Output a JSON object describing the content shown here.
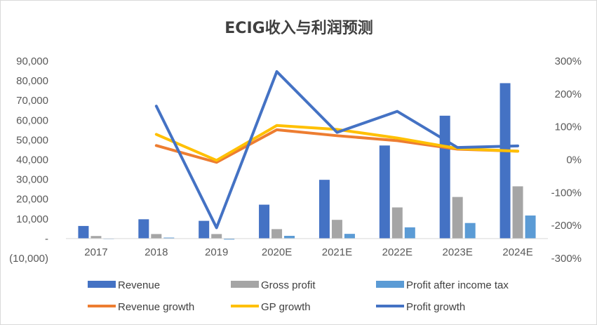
{
  "chart_data": {
    "type": "bar+line",
    "title": "ECIG收入与利润预测",
    "categories": [
      "2017",
      "2018",
      "2019",
      "2020E",
      "2021E",
      "2022E",
      "2023E",
      "2024E"
    ],
    "left_axis": {
      "ylim": [
        -10000,
        90000
      ],
      "ticks": [
        -10000,
        0,
        10000,
        20000,
        30000,
        40000,
        50000,
        60000,
        70000,
        80000,
        90000
      ],
      "tick_labels": [
        "(10,000)",
        "-",
        "10,000",
        "20,000",
        "30,000",
        "40,000",
        "50,000",
        "60,000",
        "70,000",
        "80,000",
        "90,000"
      ]
    },
    "right_axis": {
      "ylim": [
        -3,
        3
      ],
      "ticks": [
        -3,
        -2,
        -1,
        0,
        1,
        2,
        3
      ],
      "tick_labels": [
        "-300%",
        "-200%",
        "-100%",
        "0%",
        "100%",
        "200%",
        "300%"
      ]
    },
    "bar_series": [
      {
        "name": "Revenue",
        "color": "#4472c4",
        "values": [
          6400,
          9800,
          9000,
          17200,
          29800,
          47200,
          62300,
          78800
        ]
      },
      {
        "name": "Gross profit",
        "color": "#a5a5a5",
        "values": [
          1300,
          2300,
          2300,
          4800,
          9500,
          15800,
          21100,
          26500
        ]
      },
      {
        "name": "Profit after income tax",
        "color": "#5b9bd5",
        "values": [
          100,
          500,
          -500,
          1400,
          2400,
          5700,
          7900,
          11700
        ]
      }
    ],
    "line_series": [
      {
        "name": "Revenue growth",
        "color": "#ed7d31",
        "values": [
          null,
          0.43,
          -0.08,
          0.91,
          0.73,
          0.58,
          0.32,
          0.26
        ]
      },
      {
        "name": "GP growth",
        "color": "#ffc000",
        "values": [
          null,
          0.77,
          -0.02,
          1.04,
          0.92,
          0.66,
          0.34,
          0.26
        ]
      },
      {
        "name": "Profit growth",
        "color": "#4472c4",
        "values": [
          null,
          1.63,
          -2.07,
          2.68,
          0.83,
          1.47,
          0.37,
          0.42
        ]
      }
    ],
    "legend": {
      "placement": "bottom",
      "entries": [
        "Revenue",
        "Gross profit",
        "Profit after income tax",
        "Revenue growth",
        "GP growth",
        "Profit growth"
      ]
    },
    "grid": false
  }
}
